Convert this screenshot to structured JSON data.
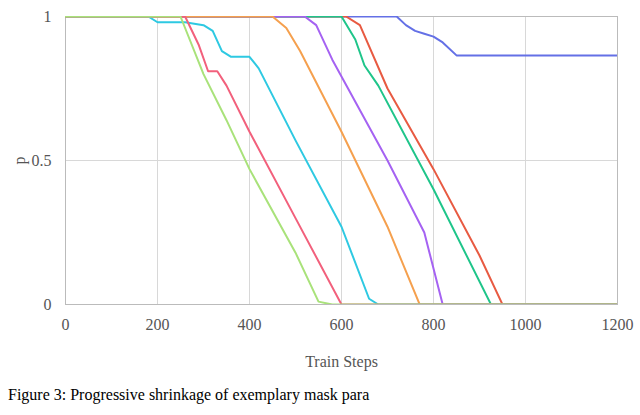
{
  "chart_data": {
    "type": "line",
    "caption": "Figure 3: Progressive shrinkage of exemplary mask para",
    "x_label": "Train Steps",
    "y_label": "p",
    "xlim": [
      0,
      1200
    ],
    "ylim": [
      0,
      1
    ],
    "xticks": [
      0,
      200,
      400,
      600,
      800,
      1000,
      1200
    ],
    "yticks": [
      0,
      0.5,
      1
    ],
    "grid": true,
    "series": [
      {
        "color": "#6470e6",
        "x": [
          0,
          720,
          740,
          760,
          780,
          800,
          820,
          850,
          1200
        ],
        "values": [
          1,
          1,
          0.97,
          0.95,
          0.94,
          0.93,
          0.91,
          0.865,
          0.865
        ]
      },
      {
        "color": "#e85a42",
        "x": [
          0,
          610,
          640,
          700,
          800,
          900,
          950,
          1200
        ],
        "values": [
          1,
          1,
          0.97,
          0.75,
          0.47,
          0.17,
          0,
          0
        ]
      },
      {
        "color": "#1fc58a",
        "x": [
          0,
          600,
          630,
          650,
          680,
          800,
          925,
          1200
        ],
        "values": [
          1,
          1,
          0.92,
          0.83,
          0.76,
          0.4,
          0,
          0
        ]
      },
      {
        "color": "#a562f2",
        "x": [
          0,
          520,
          545,
          580,
          700,
          780,
          820,
          1200
        ],
        "values": [
          1,
          1,
          0.97,
          0.85,
          0.5,
          0.25,
          0,
          0
        ]
      },
      {
        "color": "#f5a04e",
        "x": [
          0,
          450,
          480,
          510,
          600,
          700,
          770,
          1200
        ],
        "values": [
          1,
          1,
          0.96,
          0.88,
          0.6,
          0.27,
          0,
          0
        ]
      },
      {
        "color": "#2ec9e2",
        "x": [
          0,
          180,
          200,
          260,
          300,
          320,
          340,
          360,
          400,
          420,
          500,
          600,
          660,
          680,
          1200
        ],
        "values": [
          1,
          1,
          0.98,
          0.98,
          0.97,
          0.95,
          0.88,
          0.86,
          0.86,
          0.82,
          0.57,
          0.27,
          0.02,
          0,
          0
        ]
      },
      {
        "color": "#f2607c",
        "x": [
          0,
          260,
          290,
          310,
          330,
          350,
          400,
          500,
          600,
          1200
        ],
        "values": [
          1,
          1,
          0.9,
          0.81,
          0.81,
          0.76,
          0.6,
          0.3,
          0,
          0
        ]
      },
      {
        "color": "#a9e27a",
        "x": [
          0,
          250,
          300,
          350,
          400,
          500,
          550,
          580,
          1200
        ],
        "values": [
          1,
          1,
          0.8,
          0.64,
          0.47,
          0.18,
          0.01,
          0,
          0
        ]
      }
    ]
  }
}
